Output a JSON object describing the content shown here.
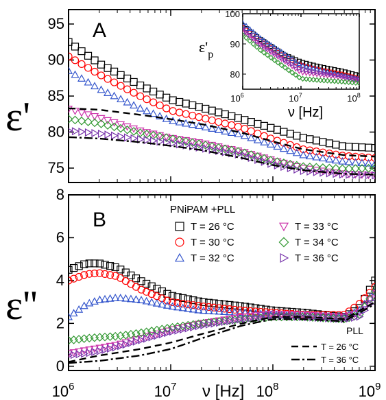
{
  "chart_data": [
    {
      "id": "A",
      "type": "scatter",
      "panel_label": "A",
      "ylabel": "ε'",
      "xscale": "log",
      "xlim": [
        1000000,
        1000000000
      ],
      "ylim": [
        73,
        97
      ],
      "yticks": [
        75,
        80,
        85,
        90,
        95
      ],
      "series": [
        {
          "label_ref": "T = 26 °C",
          "marker": "square",
          "color": "#000000",
          "x": [
            1000000,
            2000000,
            5000000,
            10000000,
            20000000,
            50000000,
            100000000,
            200000000,
            500000000,
            1000000000
          ],
          "y": [
            92.5,
            89.5,
            86.5,
            84.5,
            83.4,
            81.8,
            80.5,
            79.2,
            78.0,
            77.8
          ]
        },
        {
          "label_ref": "T = 30 °C",
          "marker": "circle",
          "color": "#ff0000",
          "x": [
            1000000,
            2000000,
            5000000,
            10000000,
            20000000,
            50000000,
            100000000,
            200000000,
            500000000,
            1000000000
          ],
          "y": [
            90.5,
            88.0,
            85.0,
            83.0,
            82.0,
            80.6,
            79.0,
            77.6,
            76.7,
            76.4
          ]
        },
        {
          "label_ref": "T = 32 °C",
          "marker": "triangle-up",
          "color": "#3355cc",
          "x": [
            1000000,
            2000000,
            5000000,
            10000000,
            20000000,
            50000000,
            100000000,
            200000000,
            500000000,
            1000000000
          ],
          "y": [
            88.5,
            86.0,
            83.3,
            81.6,
            80.8,
            79.6,
            78.2,
            76.8,
            75.9,
            75.6
          ]
        },
        {
          "label_ref": "T = 33 °C",
          "marker": "triangle-down",
          "color": "#cc33aa",
          "x": [
            1000000,
            2000000,
            5000000,
            10000000,
            20000000,
            50000000,
            100000000,
            200000000,
            500000000,
            1000000000
          ],
          "y": [
            83.2,
            82.0,
            80.2,
            79.2,
            78.5,
            77.3,
            76.1,
            75.0,
            74.2,
            74.0
          ]
        },
        {
          "label_ref": "T = 34 °C",
          "marker": "diamond",
          "color": "#339933",
          "x": [
            1000000,
            2000000,
            5000000,
            10000000,
            20000000,
            50000000,
            100000000,
            200000000,
            500000000,
            1000000000
          ],
          "y": [
            81.8,
            81.2,
            79.9,
            79.1,
            78.3,
            77.2,
            76.0,
            75.2,
            74.9,
            75.0
          ]
        },
        {
          "label_ref": "T = 36 °C",
          "marker": "triangle-right",
          "color": "#7733aa",
          "x": [
            1000000,
            2000000,
            5000000,
            10000000,
            20000000,
            50000000,
            100000000,
            200000000,
            500000000,
            1000000000
          ],
          "y": [
            80.2,
            79.8,
            79.0,
            78.5,
            77.8,
            76.8,
            75.5,
            74.6,
            74.1,
            74.0
          ]
        },
        {
          "label_ref": "PLL T = 26 °C",
          "style": "dashed",
          "color": "#000000",
          "x": [
            1000000,
            2000000,
            5000000,
            10000000,
            20000000,
            50000000,
            100000000,
            200000000,
            500000000,
            1000000000
          ],
          "y": [
            83.3,
            83.1,
            82.4,
            81.8,
            81.1,
            79.9,
            78.7,
            77.6,
            76.8,
            76.6
          ]
        },
        {
          "label_ref": "PLL T = 36 °C",
          "style": "dash-dot",
          "color": "#000000",
          "x": [
            1000000,
            2000000,
            5000000,
            10000000,
            20000000,
            50000000,
            100000000,
            200000000,
            500000000,
            1000000000
          ],
          "y": [
            79.3,
            79.1,
            78.6,
            78.1,
            77.5,
            76.4,
            75.4,
            74.7,
            74.2,
            74.1
          ]
        }
      ]
    },
    {
      "id": "A-inset",
      "type": "scatter",
      "ylabel_main": "ε'",
      "ylabel_sub": "p",
      "xlabel": "ν [Hz]",
      "xscale": "log",
      "xlim": [
        1000000,
        100000000
      ],
      "ylim": [
        75,
        100
      ],
      "yticks": [
        80,
        90,
        100
      ],
      "series": [
        {
          "marker": "square",
          "color": "#000000",
          "x": [
            1000000,
            2000000,
            5000000,
            10000000,
            20000000,
            50000000,
            100000000
          ],
          "y": [
            96,
            91.5,
            86.5,
            84,
            82.5,
            81,
            79.5
          ]
        },
        {
          "marker": "circle",
          "color": "#ff0000",
          "x": [
            1000000,
            2000000,
            5000000,
            10000000,
            20000000,
            50000000,
            100000000
          ],
          "y": [
            95.5,
            91,
            86,
            83,
            81.5,
            80,
            78.5
          ]
        },
        {
          "marker": "triangle-up",
          "color": "#3355cc",
          "x": [
            1000000,
            2000000,
            5000000,
            10000000,
            20000000,
            50000000,
            100000000
          ],
          "y": [
            97,
            92,
            87,
            83,
            81.5,
            79.5,
            78
          ]
        },
        {
          "marker": "triangle-down",
          "color": "#cc33aa",
          "x": [
            1000000,
            2000000,
            5000000,
            10000000,
            20000000,
            50000000,
            100000000
          ],
          "y": [
            94.5,
            89.5,
            84.5,
            80.5,
            79.8,
            78.8,
            77.8
          ]
        },
        {
          "marker": "diamond",
          "color": "#339933",
          "x": [
            1000000,
            2000000,
            5000000,
            10000000,
            20000000,
            50000000,
            100000000
          ],
          "y": [
            93,
            88,
            82.5,
            78.5,
            78,
            77.5,
            77
          ]
        },
        {
          "marker": "triangle-right",
          "color": "#7733aa",
          "x": [
            1000000,
            2000000,
            5000000,
            10000000,
            20000000,
            50000000,
            100000000
          ],
          "y": [
            95,
            90,
            85,
            81.5,
            80.5,
            79.5,
            78.5
          ]
        }
      ]
    },
    {
      "id": "B",
      "type": "scatter",
      "panel_label": "B",
      "ylabel": "ε''",
      "xlabel": "ν [Hz]",
      "xscale": "log",
      "xlim": [
        1000000,
        1000000000
      ],
      "ylim": [
        -0.2,
        8
      ],
      "yticks": [
        0,
        2,
        4,
        6,
        8
      ],
      "xtick_exponents": [
        "6",
        "7",
        "8",
        "9"
      ],
      "legend_title": "PNiPAM +PLL",
      "legend_placement": "top",
      "series": [
        {
          "name": "T = 26 °C",
          "marker": "square",
          "color": "#000000",
          "x": [
            1000000,
            1500000,
            2000000,
            3000000,
            5000000,
            10000000,
            20000000,
            50000000,
            100000000,
            200000000,
            500000000,
            700000000,
            1000000000
          ],
          "y": [
            4.5,
            4.8,
            4.8,
            4.6,
            4.0,
            3.3,
            3.0,
            2.8,
            2.6,
            2.5,
            2.3,
            2.7,
            4.0
          ]
        },
        {
          "name": "T = 30 °C",
          "marker": "circle",
          "color": "#ff0000",
          "x": [
            1000000,
            1500000,
            2000000,
            3000000,
            5000000,
            10000000,
            20000000,
            50000000,
            100000000,
            200000000,
            500000000,
            700000000,
            1000000000
          ],
          "y": [
            4.0,
            4.3,
            4.35,
            4.2,
            3.6,
            3.0,
            2.8,
            2.6,
            2.5,
            2.4,
            2.4,
            2.9,
            3.7
          ]
        },
        {
          "name": "T = 32 °C",
          "marker": "triangle-up",
          "color": "#3355cc",
          "x": [
            1000000,
            1500000,
            2000000,
            3000000,
            5000000,
            10000000,
            20000000,
            50000000,
            100000000,
            200000000,
            500000000,
            700000000,
            1000000000
          ],
          "y": [
            2.3,
            2.9,
            3.1,
            3.2,
            3.1,
            2.8,
            2.6,
            2.5,
            2.4,
            2.35,
            2.3,
            2.6,
            3.5
          ]
        },
        {
          "name": "T = 33 °C",
          "marker": "triangle-down",
          "color": "#cc33aa",
          "x": [
            1000000,
            1500000,
            2000000,
            3000000,
            5000000,
            10000000,
            20000000,
            50000000,
            100000000,
            200000000,
            500000000,
            700000000,
            1000000000
          ],
          "y": [
            0.6,
            0.75,
            0.85,
            1.0,
            1.3,
            1.7,
            2.0,
            2.3,
            2.45,
            2.4,
            2.3,
            2.5,
            3.4
          ]
        },
        {
          "name": "T = 34 °C",
          "marker": "diamond",
          "color": "#339933",
          "x": [
            1000000,
            1500000,
            2000000,
            3000000,
            5000000,
            10000000,
            20000000,
            50000000,
            100000000,
            200000000,
            500000000,
            700000000,
            1000000000
          ],
          "y": [
            1.2,
            1.3,
            1.35,
            1.4,
            1.55,
            1.8,
            2.0,
            2.2,
            2.3,
            2.3,
            2.2,
            2.4,
            3.5
          ]
        },
        {
          "name": "T = 36 °C",
          "marker": "triangle-right",
          "color": "#7733aa",
          "x": [
            1000000,
            1500000,
            2000000,
            3000000,
            5000000,
            10000000,
            20000000,
            50000000,
            100000000,
            200000000,
            500000000,
            700000000,
            1000000000
          ],
          "y": [
            0.5,
            0.6,
            0.7,
            0.9,
            1.2,
            1.6,
            1.9,
            2.2,
            2.35,
            2.3,
            2.2,
            2.3,
            3.2
          ]
        }
      ],
      "reference_lines": {
        "title": "PLL",
        "items": [
          {
            "name": "T = 26 °C",
            "style": "dashed",
            "color": "#000000",
            "x": [
              1000000,
              2000000,
              5000000,
              10000000,
              20000000,
              50000000,
              100000000,
              200000000,
              500000000,
              1000000000
            ],
            "y": [
              0.2,
              0.5,
              0.8,
              1.1,
              1.5,
              2.0,
              2.3,
              2.3,
              2.2,
              3.0
            ]
          },
          {
            "name": "T = 36 °C",
            "style": "dash-dot",
            "color": "#000000",
            "x": [
              1000000,
              2000000,
              5000000,
              10000000,
              20000000,
              50000000,
              100000000,
              200000000,
              500000000,
              1000000000
            ],
            "y": [
              0.15,
              0.25,
              0.5,
              0.8,
              1.3,
              1.9,
              2.2,
              2.2,
              2.1,
              2.9
            ]
          }
        ]
      }
    }
  ]
}
